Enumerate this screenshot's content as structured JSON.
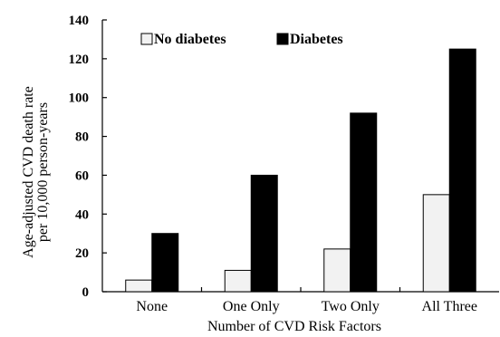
{
  "chart_data": {
    "type": "bar",
    "categories": [
      "None",
      "One Only",
      "Two Only",
      "All Three"
    ],
    "series": [
      {
        "name": "No diabetes",
        "values": [
          6,
          11,
          22,
          50
        ],
        "color": "#f2f2f2"
      },
      {
        "name": "Diabetes",
        "values": [
          30,
          60,
          92,
          125
        ],
        "color": "#000000"
      }
    ],
    "xlabel": "Number of CVD Risk Factors",
    "ylabel_lines": [
      "Age-adjusted CVD death rate",
      "per 10,000 person-years"
    ],
    "ylim": [
      0,
      140
    ],
    "yticks": [
      0,
      20,
      40,
      60,
      80,
      100,
      120,
      140
    ],
    "grid": false,
    "legend_position": "top-left"
  }
}
